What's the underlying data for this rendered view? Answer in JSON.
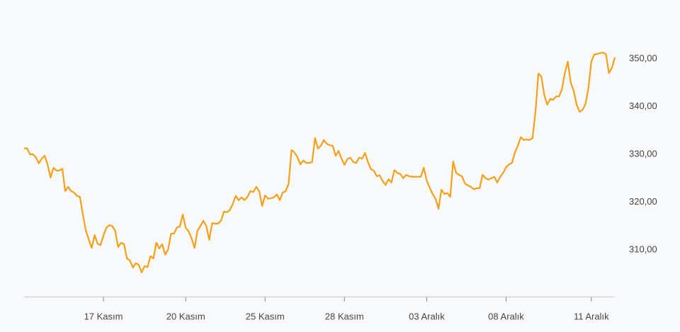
{
  "chart_data": {
    "type": "line",
    "categories": [
      null,
      null,
      null,
      null,
      null,
      null,
      null,
      null,
      null,
      null,
      null,
      null,
      null,
      null,
      null,
      null,
      null,
      null,
      null,
      null,
      null,
      null,
      null,
      null,
      null,
      null,
      null,
      "17 Kasım",
      null,
      null,
      null,
      null,
      null,
      null,
      null,
      null,
      null,
      null,
      null,
      null,
      null,
      null,
      null,
      null,
      null,
      null,
      null,
      null,
      null,
      null,
      null,
      null,
      null,
      null,
      null,
      "20 Kasım",
      null,
      null,
      null,
      null,
      null,
      null,
      null,
      null,
      null,
      null,
      null,
      null,
      null,
      null,
      null,
      null,
      null,
      null,
      null,
      null,
      null,
      null,
      null,
      null,
      null,
      null,
      "25 Kasım",
      null,
      null,
      null,
      null,
      null,
      null,
      null,
      null,
      null,
      null,
      null,
      null,
      null,
      null,
      null,
      null,
      null,
      null,
      null,
      null,
      null,
      null,
      null,
      null,
      null,
      null,
      "28 Kasım",
      null,
      null,
      null,
      null,
      null,
      null,
      null,
      null,
      null,
      null,
      null,
      null,
      null,
      null,
      null,
      null,
      null,
      null,
      null,
      null,
      null,
      null,
      null,
      null,
      null,
      null,
      null,
      "03 Aralık",
      null,
      null,
      null,
      null,
      null,
      null,
      null,
      null,
      null,
      null,
      null,
      null,
      null,
      null,
      null,
      null,
      null,
      null,
      null,
      null,
      null,
      null,
      null,
      null,
      null,
      null,
      "08 Aralık",
      null,
      null,
      null,
      null,
      null,
      null,
      null,
      null,
      null,
      null,
      null,
      null,
      null,
      null,
      null,
      null,
      null,
      null,
      null,
      null,
      null,
      null,
      null,
      null,
      null,
      null,
      null,
      null,
      "11 Aralık",
      null,
      null,
      null,
      null,
      null,
      null,
      null,
      null
    ],
    "values": [
      331.2,
      331.3,
      330.0,
      330.0,
      329.4,
      328.1,
      329.1,
      329.7,
      327.9,
      325.1,
      327.2,
      326.6,
      326.6,
      327.0,
      322.3,
      323.2,
      322.3,
      322.0,
      321.3,
      321.1,
      317.4,
      314.1,
      312.2,
      310.4,
      313.1,
      311.3,
      311.0,
      313.0,
      314.6,
      315.2,
      315.0,
      314.0,
      310.6,
      311.5,
      311.2,
      308.2,
      307.8,
      306.3,
      307.2,
      306.9,
      305.3,
      306.6,
      306.4,
      308.7,
      308.2,
      311.5,
      310.3,
      311.2,
      309.0,
      310.1,
      313.4,
      313.4,
      314.7,
      314.9,
      317.4,
      314.6,
      313.9,
      312.4,
      310.4,
      314.0,
      315.0,
      316.1,
      315.0,
      312.1,
      315.6,
      315.5,
      315.5,
      316.1,
      318.0,
      317.9,
      318.3,
      319.6,
      321.3,
      320.4,
      321.0,
      320.4,
      321.1,
      322.3,
      322.1,
      323.2,
      322.3,
      319.2,
      321.4,
      320.7,
      320.8,
      321.0,
      321.6,
      320.4,
      322.0,
      322.3,
      323.8,
      330.9,
      330.4,
      329.4,
      327.9,
      328.7,
      328.2,
      328.2,
      328.4,
      333.4,
      331.2,
      331.8,
      333.0,
      332.2,
      331.9,
      331.8,
      329.7,
      330.7,
      329.1,
      327.8,
      329.0,
      329.3,
      328.4,
      328.2,
      329.3,
      329.1,
      330.3,
      328.4,
      326.9,
      326.6,
      325.4,
      325.6,
      324.4,
      323.6,
      324.8,
      324.1,
      326.7,
      326.1,
      325.9,
      325.0,
      325.7,
      325.4,
      325.3,
      325.3,
      325.3,
      325.3,
      327.2,
      324.5,
      323.0,
      321.7,
      320.7,
      318.6,
      322.6,
      321.7,
      321.9,
      321.1,
      328.5,
      326.1,
      325.7,
      325.4,
      323.9,
      323.5,
      323.2,
      322.7,
      322.9,
      322.9,
      325.7,
      325.0,
      324.7,
      325.0,
      325.3,
      324.1,
      325.3,
      326.1,
      327.3,
      327.9,
      328.2,
      330.4,
      331.8,
      333.6,
      333.0,
      333.1,
      333.0,
      333.4,
      338.9,
      346.9,
      346.3,
      342.4,
      340.4,
      341.6,
      341.4,
      342.1,
      342.1,
      343.6,
      347.0,
      349.4,
      345.0,
      343.3,
      340.4,
      338.9,
      339.3,
      340.5,
      343.8,
      349.4,
      350.9,
      351.0,
      351.2,
      351.3,
      350.9,
      347.0,
      348.1,
      350.3
    ],
    "color": "#f5a01a",
    "ylim": [
      300,
      362
    ],
    "yticks": [
      {
        "value": 310,
        "label": "310,00"
      },
      {
        "value": 320,
        "label": "320,00"
      },
      {
        "value": 330,
        "label": "330,00"
      },
      {
        "value": 340,
        "label": "340,00"
      },
      {
        "value": 350,
        "label": "350,00"
      }
    ],
    "y_axis_side": "right",
    "grid": false
  }
}
